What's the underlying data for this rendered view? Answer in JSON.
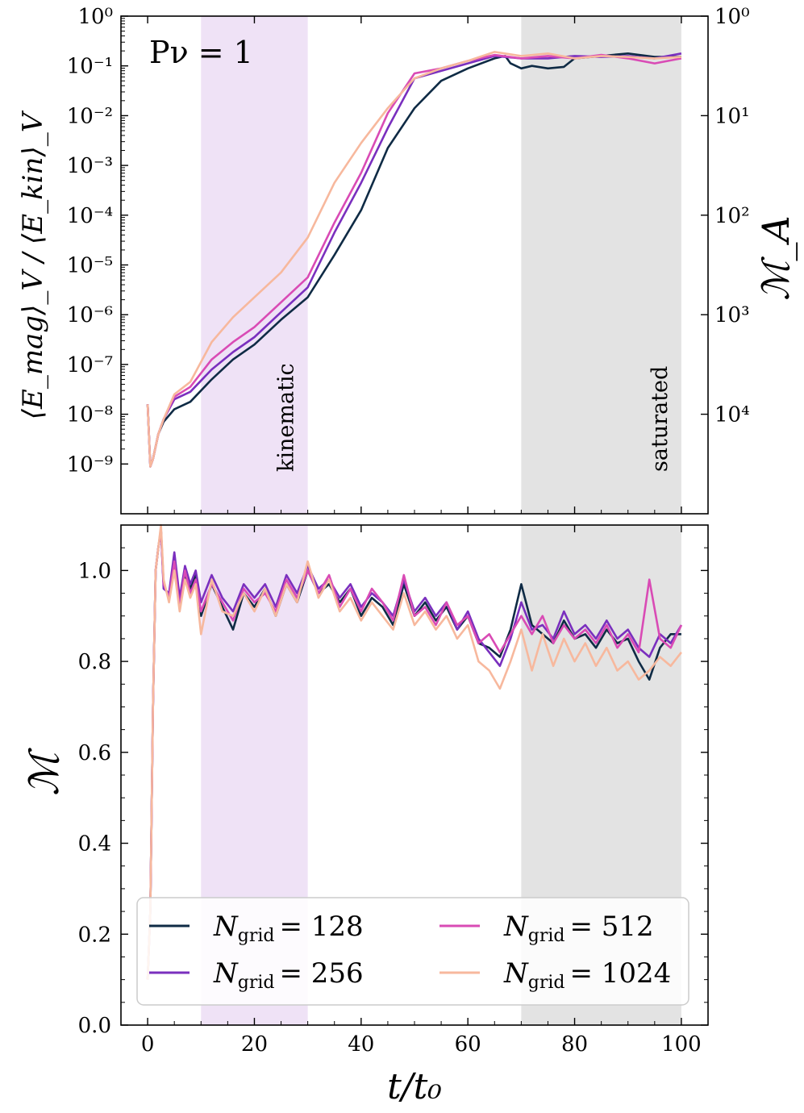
{
  "figure": {
    "xlabel": "t/t₀",
    "xticks": [
      0,
      20,
      40,
      60,
      80,
      100
    ],
    "xlim": [
      -5,
      105
    ]
  },
  "chart_data": [
    {
      "type": "line",
      "name": "energy-ratio",
      "ylabel": "⟨E_mag⟩_V / ⟨E_kin⟩_V",
      "ylabel_right": "ℳ_A",
      "annotation": "Pν = 1",
      "yscale": "log",
      "ylim_exp": [
        -10.0,
        0.0
      ],
      "yticks": [
        {
          "exp": -9,
          "label": "10⁻⁹"
        },
        {
          "exp": -8,
          "label": "10⁻⁸"
        },
        {
          "exp": -7,
          "label": "10⁻⁷"
        },
        {
          "exp": -6,
          "label": "10⁻⁶"
        },
        {
          "exp": -5,
          "label": "10⁻⁵"
        },
        {
          "exp": -4,
          "label": "10⁻⁴"
        },
        {
          "exp": -3,
          "label": "10⁻³"
        },
        {
          "exp": -2,
          "label": "10⁻²"
        },
        {
          "exp": -1,
          "label": "10⁻¹"
        },
        {
          "exp": 0,
          "label": "10⁰"
        }
      ],
      "yticks_right": [
        {
          "exp": 0,
          "label": "10⁰"
        },
        {
          "exp": -2,
          "label": "10¹"
        },
        {
          "exp": -4,
          "label": "10²"
        },
        {
          "exp": -6,
          "label": "10³"
        },
        {
          "exp": -8,
          "label": "10⁴"
        }
      ],
      "bands": [
        {
          "name": "kinematic",
          "x": [
            10,
            30
          ],
          "label": "kinematic",
          "color": "#efe2f6",
          "text_color": "#a03cc8"
        },
        {
          "name": "saturated",
          "x": [
            70,
            100
          ],
          "label": "saturated",
          "color": "#e3e3e3",
          "text_color": "#222222"
        }
      ],
      "series": [
        {
          "name": "N_grid = 128",
          "color": "#0f2b45",
          "x": [
            0,
            0.5,
            1,
            2,
            3,
            5,
            8,
            12,
            16,
            20,
            25,
            30,
            35,
            40,
            45,
            50,
            55,
            60,
            65,
            67,
            68,
            70,
            72,
            75,
            78,
            80,
            85,
            90,
            95,
            100
          ],
          "y_exp": [
            -7.8,
            -9.05,
            -8.9,
            -8.4,
            -8.15,
            -7.9,
            -7.75,
            -7.3,
            -6.9,
            -6.6,
            -6.1,
            -5.65,
            -4.8,
            -3.9,
            -2.65,
            -1.85,
            -1.3,
            -1.05,
            -0.85,
            -0.8,
            -0.95,
            -1.05,
            -1.0,
            -1.05,
            -1.02,
            -0.85,
            -0.8,
            -0.75,
            -0.82,
            -0.82
          ]
        },
        {
          "name": "N_grid = 256",
          "color": "#7a2fbe",
          "x": [
            0,
            0.5,
            1,
            2,
            3,
            5,
            8,
            12,
            16,
            20,
            25,
            30,
            35,
            40,
            45,
            50,
            55,
            60,
            65,
            70,
            75,
            80,
            85,
            90,
            95,
            100
          ],
          "y_exp": [
            -7.8,
            -9.05,
            -8.9,
            -8.4,
            -8.1,
            -7.7,
            -7.55,
            -7.1,
            -6.75,
            -6.45,
            -5.95,
            -5.45,
            -4.35,
            -3.35,
            -2.25,
            -1.25,
            -1.1,
            -0.95,
            -0.8,
            -0.85,
            -0.85,
            -0.8,
            -0.82,
            -0.8,
            -0.85,
            -0.75
          ]
        },
        {
          "name": "N_grid = 512",
          "color": "#d94bb5",
          "x": [
            0,
            0.5,
            1,
            2,
            3,
            5,
            8,
            12,
            16,
            20,
            25,
            30,
            35,
            40,
            45,
            50,
            55,
            60,
            65,
            70,
            75,
            80,
            85,
            90,
            95,
            100
          ],
          "y_exp": [
            -7.8,
            -9.05,
            -8.9,
            -8.4,
            -8.1,
            -7.65,
            -7.45,
            -6.9,
            -6.55,
            -6.25,
            -5.75,
            -5.25,
            -4.15,
            -3.15,
            -1.95,
            -1.15,
            -1.05,
            -0.9,
            -0.78,
            -0.85,
            -0.8,
            -0.85,
            -0.78,
            -0.85,
            -0.95,
            -0.85
          ]
        },
        {
          "name": "N_grid = 1024",
          "color": "#f7b89d",
          "x": [
            0,
            0.5,
            1,
            2,
            3,
            5,
            8,
            12,
            16,
            20,
            25,
            30,
            35,
            40,
            45,
            50,
            55,
            60,
            65,
            70,
            75,
            80,
            85,
            90,
            95,
            100
          ],
          "y_exp": [
            -7.8,
            -9.05,
            -8.9,
            -8.4,
            -8.1,
            -7.6,
            -7.35,
            -6.55,
            -6.05,
            -5.65,
            -5.15,
            -4.45,
            -3.35,
            -2.55,
            -1.85,
            -1.25,
            -1.05,
            -0.9,
            -0.72,
            -0.8,
            -0.75,
            -0.85,
            -0.8,
            -0.82,
            -0.85,
            -0.82
          ]
        }
      ]
    },
    {
      "type": "line",
      "name": "mach-number",
      "ylabel": "ℳ",
      "ylim": [
        0.0,
        1.1
      ],
      "yticks": [
        0.0,
        0.2,
        0.4,
        0.6,
        0.8,
        1.0
      ],
      "ytick_labels": [
        "0.0",
        "0.2",
        "0.4",
        "0.6",
        "0.8",
        "1.0"
      ],
      "bands": [
        {
          "name": "kinematic",
          "x": [
            10,
            30
          ],
          "color": "#efe2f6"
        },
        {
          "name": "saturated",
          "x": [
            70,
            100
          ],
          "color": "#e3e3e3"
        }
      ],
      "legend": {
        "placement": "lower-left",
        "columns": 2
      },
      "series": [
        {
          "name": "N_grid = 128",
          "label_prefix": "N",
          "label_sub": "grid",
          "label_value": "= 128",
          "color": "#0f2b45",
          "x": [
            0,
            0.5,
            1,
            1.5,
            2,
            2.5,
            3,
            4,
            5,
            6,
            7,
            8,
            9,
            10,
            12,
            14,
            16,
            18,
            20,
            22,
            24,
            26,
            28,
            30,
            32,
            34,
            36,
            38,
            40,
            42,
            44,
            46,
            48,
            50,
            52,
            54,
            56,
            58,
            60,
            62,
            64,
            66,
            68,
            70,
            72,
            74,
            76,
            78,
            80,
            82,
            84,
            86,
            88,
            90,
            92,
            94,
            96,
            98,
            100
          ],
          "y": [
            0.1,
            0.25,
            0.7,
            1.0,
            1.05,
            1.09,
            0.97,
            0.94,
            1.02,
            0.93,
            0.99,
            0.96,
            0.99,
            0.9,
            0.97,
            0.92,
            0.87,
            0.95,
            0.92,
            0.96,
            0.9,
            0.97,
            0.93,
            1.0,
            0.95,
            0.97,
            0.93,
            0.96,
            0.9,
            0.94,
            0.92,
            0.88,
            0.97,
            0.9,
            0.93,
            0.89,
            0.92,
            0.87,
            0.9,
            0.84,
            0.83,
            0.81,
            0.87,
            0.97,
            0.88,
            0.86,
            0.84,
            0.89,
            0.85,
            0.86,
            0.83,
            0.87,
            0.84,
            0.85,
            0.8,
            0.76,
            0.83,
            0.86,
            0.86
          ]
        },
        {
          "name": "N_grid = 256",
          "label_prefix": "N",
          "label_sub": "grid",
          "label_value": "= 256",
          "color": "#7a2fbe",
          "x": [
            0,
            0.5,
            1,
            1.5,
            2,
            2.5,
            3,
            4,
            5,
            6,
            7,
            8,
            9,
            10,
            12,
            14,
            16,
            18,
            20,
            22,
            24,
            26,
            28,
            30,
            32,
            34,
            36,
            38,
            40,
            42,
            44,
            46,
            48,
            50,
            52,
            54,
            56,
            58,
            60,
            62,
            64,
            66,
            68,
            70,
            72,
            74,
            76,
            78,
            80,
            82,
            84,
            86,
            88,
            90,
            92,
            94,
            96,
            98,
            100
          ],
          "y": [
            0.1,
            0.25,
            0.7,
            1.0,
            1.05,
            1.09,
            0.96,
            0.95,
            1.04,
            0.94,
            1.01,
            0.97,
            1.0,
            0.93,
            0.99,
            0.94,
            0.91,
            0.97,
            0.94,
            0.97,
            0.92,
            0.99,
            0.95,
            1.01,
            0.96,
            0.98,
            0.94,
            0.97,
            0.92,
            0.95,
            0.93,
            0.9,
            0.98,
            0.91,
            0.94,
            0.9,
            0.93,
            0.87,
            0.91,
            0.85,
            0.82,
            0.79,
            0.85,
            0.93,
            0.87,
            0.88,
            0.85,
            0.91,
            0.86,
            0.88,
            0.85,
            0.89,
            0.85,
            0.87,
            0.83,
            0.81,
            0.86,
            0.84,
            0.88
          ]
        },
        {
          "name": "N_grid = 512",
          "label_prefix": "N",
          "label_sub": "grid",
          "label_value": "= 512",
          "color": "#d94bb5",
          "x": [
            0,
            0.5,
            1,
            1.5,
            2,
            2.5,
            3,
            4,
            5,
            6,
            7,
            8,
            9,
            10,
            12,
            14,
            16,
            18,
            20,
            22,
            24,
            26,
            28,
            30,
            32,
            34,
            36,
            38,
            40,
            42,
            44,
            46,
            48,
            50,
            52,
            54,
            56,
            58,
            60,
            62,
            64,
            66,
            68,
            70,
            72,
            74,
            76,
            78,
            80,
            82,
            84,
            86,
            88,
            90,
            92,
            94,
            96,
            98,
            100
          ],
          "y": [
            0.1,
            0.25,
            0.7,
            1.0,
            1.05,
            1.09,
            0.97,
            0.94,
            1.02,
            0.92,
            1.0,
            0.95,
            0.98,
            0.91,
            0.97,
            0.93,
            0.89,
            0.96,
            0.93,
            0.95,
            0.91,
            0.98,
            0.94,
            1.0,
            0.95,
            0.99,
            0.92,
            0.96,
            0.91,
            0.96,
            0.93,
            0.89,
            0.99,
            0.9,
            0.92,
            0.88,
            0.93,
            0.88,
            0.9,
            0.84,
            0.86,
            0.82,
            0.86,
            0.9,
            0.86,
            0.9,
            0.84,
            0.88,
            0.85,
            0.87,
            0.84,
            0.88,
            0.83,
            0.86,
            0.82,
            0.98,
            0.85,
            0.83,
            0.88
          ]
        },
        {
          "name": "N_grid = 1024",
          "label_prefix": "N",
          "label_sub": "grid",
          "label_value": "= 1024",
          "color": "#f7b89d",
          "x": [
            0,
            0.5,
            1,
            1.5,
            2,
            2.5,
            3,
            4,
            5,
            6,
            7,
            8,
            9,
            10,
            12,
            14,
            16,
            18,
            20,
            22,
            24,
            26,
            28,
            30,
            32,
            34,
            36,
            38,
            40,
            42,
            44,
            46,
            48,
            50,
            52,
            54,
            56,
            58,
            60,
            62,
            64,
            66,
            68,
            70,
            72,
            74,
            76,
            78,
            80,
            82,
            84,
            86,
            88,
            90,
            92,
            94,
            96,
            98,
            100
          ],
          "y": [
            0.1,
            0.25,
            0.7,
            1.0,
            1.05,
            1.1,
            0.98,
            0.93,
            1.0,
            0.91,
            0.98,
            0.94,
            0.97,
            0.86,
            0.98,
            0.91,
            0.9,
            0.95,
            0.91,
            0.96,
            0.9,
            0.97,
            0.93,
            1.02,
            0.94,
            0.98,
            0.91,
            0.94,
            0.89,
            0.93,
            0.9,
            0.87,
            0.95,
            0.88,
            0.91,
            0.87,
            0.9,
            0.85,
            0.88,
            0.8,
            0.78,
            0.74,
            0.8,
            0.87,
            0.78,
            0.86,
            0.79,
            0.85,
            0.8,
            0.84,
            0.79,
            0.83,
            0.78,
            0.8,
            0.76,
            0.78,
            0.81,
            0.79,
            0.82
          ]
        }
      ]
    }
  ]
}
